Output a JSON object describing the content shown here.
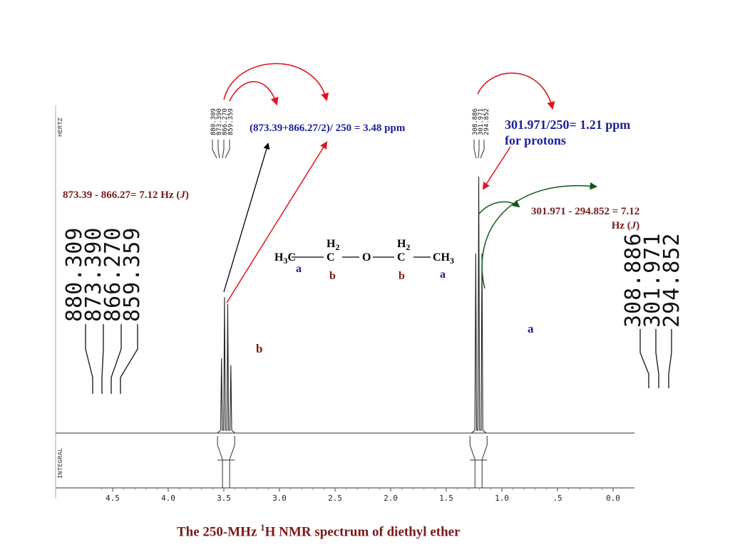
{
  "chart_data": {
    "type": "line",
    "title": "The 250-MHz ¹H NMR spectrum of diethyl ether",
    "axis_ticks": [
      "4.5",
      "4.0",
      "3.5",
      "3.0",
      "2.5",
      "2.0",
      "1.5",
      "1.0",
      ".5",
      "0.0"
    ],
    "xlim": [
      4.75,
      -0.15
    ],
    "axis_side_labels": {
      "top": "HERTZ",
      "bottom": "INTEGRAL"
    },
    "peaks": [
      {
        "group": "b",
        "center_ppm": 3.48,
        "lines_ppm": [
          3.521,
          3.494,
          3.465,
          3.437
        ],
        "relative_heights": [
          0.55,
          1.0,
          0.95,
          0.5
        ],
        "integral": 2
      },
      {
        "group": "a",
        "center_ppm": 1.21,
        "lines_ppm": [
          1.235,
          1.208,
          1.179
        ],
        "relative_heights": [
          0.7,
          1.0,
          0.7
        ],
        "integral": 3
      }
    ],
    "peak_lists": {
      "b_hz": [
        "880.309",
        "873.390",
        "866.270",
        "859.359"
      ],
      "a_hz": [
        "308.886",
        "301.971",
        "294.852"
      ]
    }
  },
  "caption_main": "The 250-MHz ",
  "caption_sup": "1",
  "caption_rest": "H NMR spectrum of diethyl ether",
  "annotations": {
    "b_ppm_calc": "(873.39+866.27/2)/ 250 = 3.48 ppm",
    "b_j_calc": "873.39 - 866.27= 7.12 Hz (",
    "b_j_symbol": "J",
    "b_j_close": ")",
    "a_ppm_calc_line1": "301.971/250= 1.21 ppm",
    "a_ppm_calc_line2": "for protons",
    "a_j_calc_line1": "301.971 - 294.852 = 7.12",
    "a_j_calc_line2": "Hz (",
    "a_j_symbol": "J",
    "a_j_close": ")",
    "label_a": "a",
    "label_b": "b"
  },
  "molecule": {
    "left_methyl": "H",
    "left_methyl_sub": "3",
    "left_methyl_c": "C",
    "ch2_h": "H",
    "ch2_sub": "2",
    "carbon": "C",
    "oxygen": "O",
    "right_methyl": "CH",
    "right_methyl_sub": "3",
    "label_a": "a",
    "label_b": "b"
  },
  "colors": {
    "red_arrow": "#e0141e",
    "green_arrow": "#0e5a14",
    "blue_text": "#1a1f9a",
    "brown_text": "#7a1a1a"
  }
}
